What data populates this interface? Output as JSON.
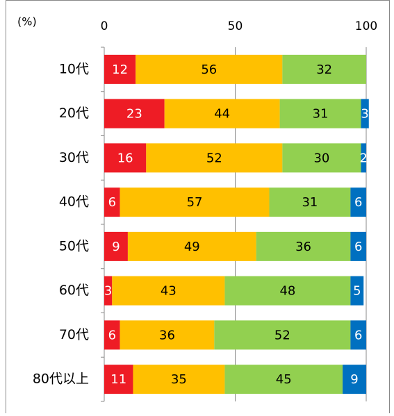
{
  "chart_data": {
    "type": "stacked-bar-horizontal",
    "unit_label": "(%)",
    "categories": [
      "10代",
      "20代",
      "30代",
      "40代",
      "50代",
      "60代",
      "70代",
      "80代以上"
    ],
    "series": [
      {
        "color": "#ee1c25",
        "label_color": "#ffffff",
        "values": [
          12,
          23,
          16,
          6,
          9,
          3,
          6,
          11
        ]
      },
      {
        "color": "#ffc000",
        "label_color": "#000000",
        "values": [
          56,
          44,
          52,
          57,
          49,
          43,
          36,
          35
        ]
      },
      {
        "color": "#92d050",
        "label_color": "#000000",
        "values": [
          32,
          31,
          30,
          31,
          36,
          48,
          52,
          45
        ]
      },
      {
        "color": "#0070c0",
        "label_color": "#ffffff",
        "values": [
          null,
          3,
          2,
          6,
          6,
          5,
          6,
          9
        ]
      }
    ],
    "xlim": [
      0,
      100
    ],
    "xticks": [
      0,
      50,
      100
    ],
    "grid": true
  }
}
